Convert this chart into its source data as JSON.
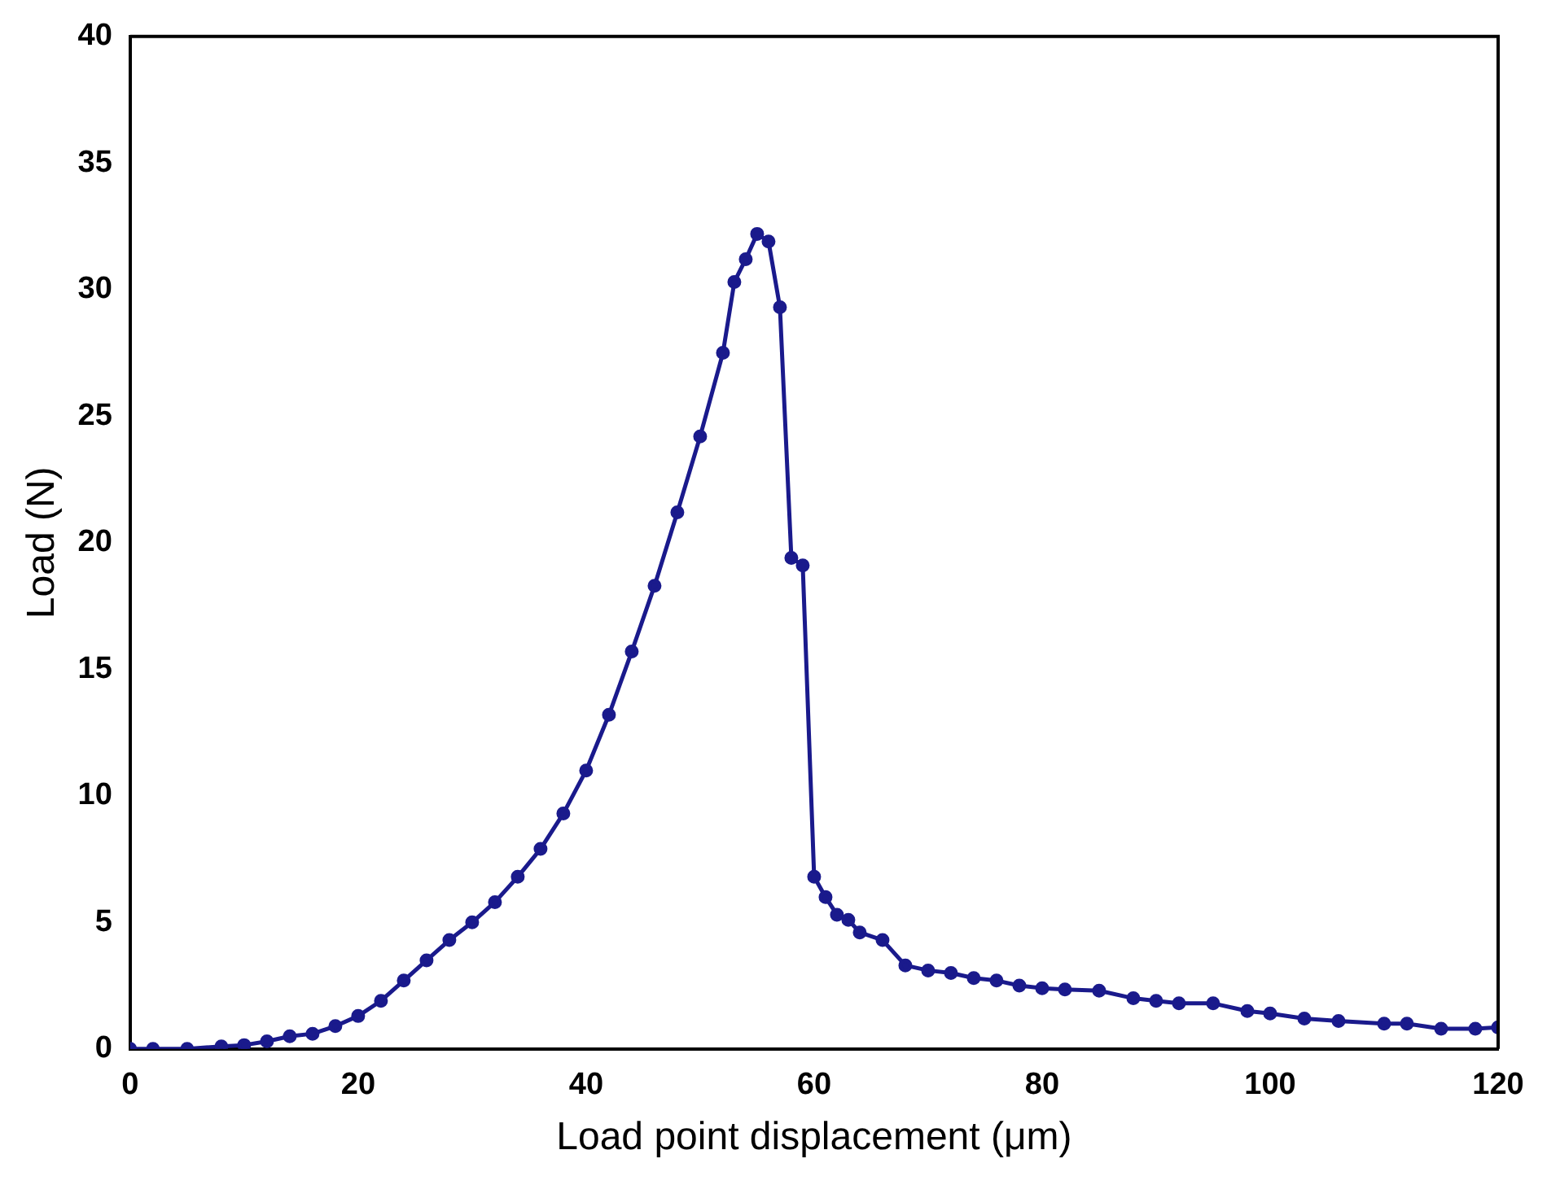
{
  "chart_data": {
    "type": "line",
    "xlabel": "Load point displacement (μm)",
    "ylabel": "Load (N)",
    "xlim": [
      0,
      120
    ],
    "xticks": [
      0,
      20,
      40,
      60,
      80,
      100,
      120
    ],
    "ylim": [
      0,
      40
    ],
    "yticks": [
      0,
      5,
      10,
      15,
      20,
      25,
      30,
      35,
      40
    ],
    "grid": false,
    "legend": false,
    "marker": "circle",
    "line_style": "solid",
    "series": [
      {
        "color": "#1a1a8c",
        "x": [
          0,
          2,
          5,
          8,
          10,
          12,
          14,
          16,
          18,
          20,
          22,
          24,
          26,
          28,
          30,
          32,
          34,
          36,
          38,
          40,
          42,
          44,
          46,
          48,
          50,
          52,
          53,
          54,
          55,
          56,
          57,
          58,
          59,
          60,
          61,
          62,
          63,
          64,
          66,
          68,
          70,
          72,
          74,
          76,
          78,
          80,
          82,
          85,
          88,
          90,
          92,
          95,
          98,
          100,
          103,
          106,
          110,
          112,
          115,
          118,
          120
        ],
        "values": [
          0,
          0,
          0,
          0.1,
          0.15,
          0.3,
          0.5,
          0.6,
          0.9,
          1.3,
          1.9,
          2.7,
          3.5,
          4.3,
          5.0,
          5.8,
          6.8,
          7.9,
          9.3,
          11.0,
          13.2,
          15.7,
          18.3,
          21.2,
          24.2,
          27.5,
          30.3,
          31.2,
          32.2,
          31.9,
          29.3,
          19.4,
          19.1,
          6.8,
          6.0,
          5.3,
          5.1,
          4.6,
          4.3,
          3.3,
          3.1,
          3.0,
          2.8,
          2.7,
          2.5,
          2.4,
          2.35,
          2.3,
          2.0,
          1.9,
          1.8,
          1.8,
          1.5,
          1.4,
          1.2,
          1.1,
          1.0,
          1.0,
          0.8,
          0.8,
          0.85
        ]
      }
    ]
  }
}
